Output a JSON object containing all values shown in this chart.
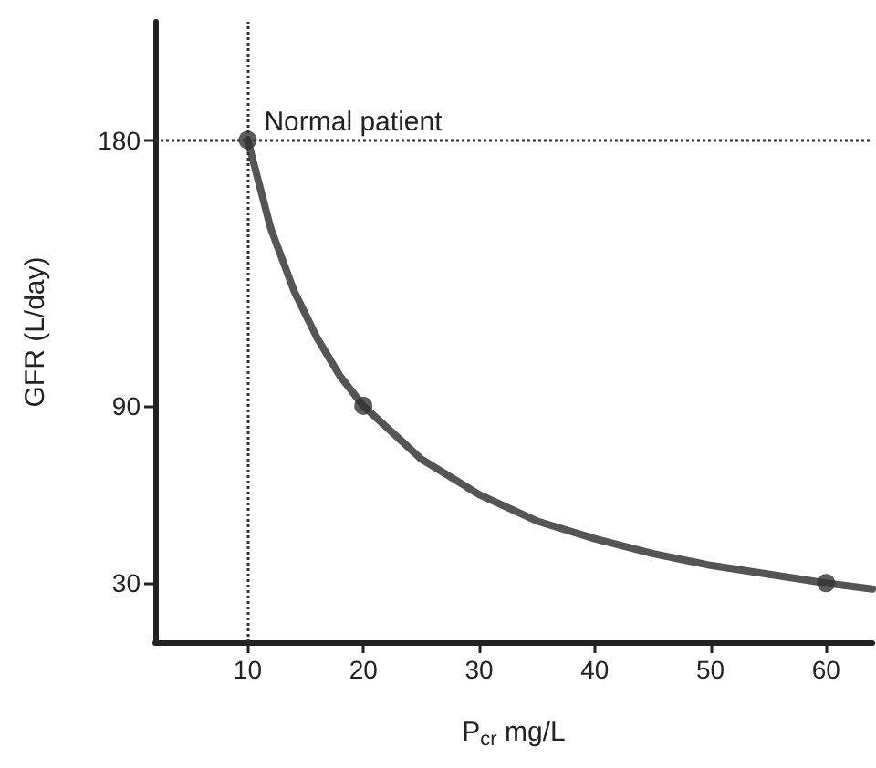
{
  "chart_data": {
    "type": "line",
    "xlabel": "P$_{cr}$ mg/L",
    "ylabel": "GFR (L/day)",
    "xlim": [
      2,
      64
    ],
    "xticks": [
      10,
      20,
      30,
      40,
      50,
      60
    ],
    "ylim": [
      10,
      220
    ],
    "yticks": [
      30,
      90,
      180
    ],
    "grid": false,
    "series": [
      {
        "color": "#555555",
        "marker": "none",
        "line_style": "solid",
        "x": [
          10,
          12,
          14,
          16,
          18,
          20,
          25,
          30,
          35,
          40,
          45,
          50,
          55,
          60,
          64
        ],
        "values": [
          180,
          150,
          129,
          113,
          100,
          90,
          72,
          60,
          51,
          45,
          40,
          36,
          33,
          30,
          28
        ]
      },
      {
        "type": "scatter",
        "color": "#333333",
        "marker": "circle",
        "x": [
          10,
          20,
          60
        ],
        "values": [
          180,
          90,
          30
        ]
      }
    ],
    "ref_lines": [
      {
        "axis": "x",
        "value": 10,
        "line_style": "dotted",
        "color": "#333333"
      },
      {
        "axis": "y",
        "value": 180,
        "line_style": "dotted",
        "color": "#333333"
      }
    ],
    "annotations": [
      {
        "text": "Normal patient",
        "x": 10,
        "y": 180
      }
    ]
  }
}
